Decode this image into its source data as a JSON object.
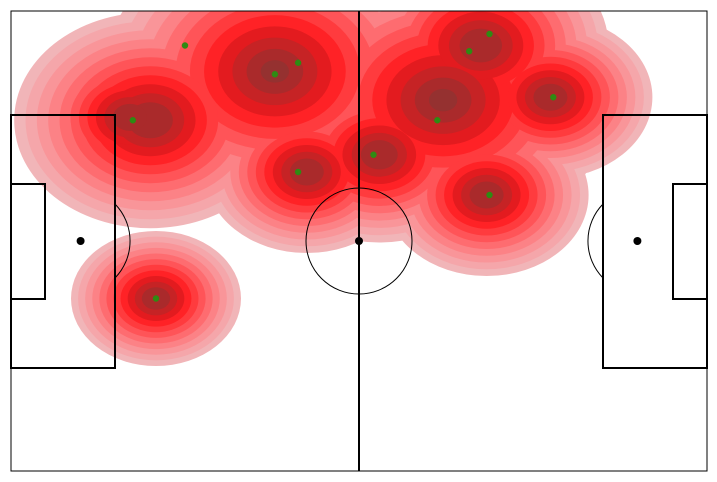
{
  "chart_data": {
    "type": "heatmap",
    "title": "",
    "xlabel": "",
    "ylabel": "",
    "pitch": {
      "length": 120,
      "width": 80
    },
    "xlim": [
      0,
      120
    ],
    "ylim": [
      0,
      80
    ],
    "grid": false,
    "legend": "none",
    "density_levels": [
      {
        "level": 1,
        "color": "#f1b5b8"
      },
      {
        "level": 2,
        "color": "#f5a6aa"
      },
      {
        "level": 3,
        "color": "#f99599"
      },
      {
        "level": 4,
        "color": "#fc8286"
      },
      {
        "level": 5,
        "color": "#fe6c70"
      },
      {
        "level": 6,
        "color": "#ff5458"
      },
      {
        "level": 7,
        "color": "#ff3b3e"
      },
      {
        "level": 8,
        "color": "#ff2226"
      },
      {
        "level": 9,
        "color": "#e31b1f"
      },
      {
        "level": 10,
        "color": "#c62325"
      },
      {
        "level": 11,
        "color": "#aa2a2b"
      },
      {
        "level": 12,
        "color": "#953130"
      },
      {
        "level": 13,
        "color": "#8a3432"
      }
    ],
    "density_peaks": [
      {
        "x": 45.5,
        "y": 10.5,
        "w": 1.0
      },
      {
        "x": 74.5,
        "y": 15.5,
        "w": 1.0
      },
      {
        "x": 24.0,
        "y": 19.0,
        "w": 0.8
      },
      {
        "x": 81.0,
        "y": 6.0,
        "w": 0.75
      },
      {
        "x": 51.0,
        "y": 28.0,
        "w": 0.6
      },
      {
        "x": 63.5,
        "y": 25.0,
        "w": 0.65
      },
      {
        "x": 25.0,
        "y": 50.0,
        "w": 0.5
      },
      {
        "x": 93.0,
        "y": 15.0,
        "w": 0.6
      },
      {
        "x": 82.0,
        "y": 32.0,
        "w": 0.6
      },
      {
        "x": 20.5,
        "y": 18.5,
        "w": 0.6
      }
    ],
    "points_color": "#2f8a13",
    "points": [
      {
        "x": 30.0,
        "y": 6.0
      },
      {
        "x": 45.5,
        "y": 11.0
      },
      {
        "x": 49.5,
        "y": 9.0
      },
      {
        "x": 82.5,
        "y": 4.0
      },
      {
        "x": 79.0,
        "y": 7.0
      },
      {
        "x": 93.5,
        "y": 15.0
      },
      {
        "x": 21.0,
        "y": 19.0
      },
      {
        "x": 73.5,
        "y": 19.0
      },
      {
        "x": 62.5,
        "y": 25.0
      },
      {
        "x": 49.5,
        "y": 28.0
      },
      {
        "x": 82.5,
        "y": 32.0
      },
      {
        "x": 25.0,
        "y": 50.0
      }
    ],
    "markers": [
      {
        "name": "left-penalty-spot",
        "x": 12,
        "y": 40
      },
      {
        "name": "centre-spot",
        "x": 60,
        "y": 40
      },
      {
        "name": "right-penalty-spot",
        "x": 108,
        "y": 40
      }
    ]
  }
}
